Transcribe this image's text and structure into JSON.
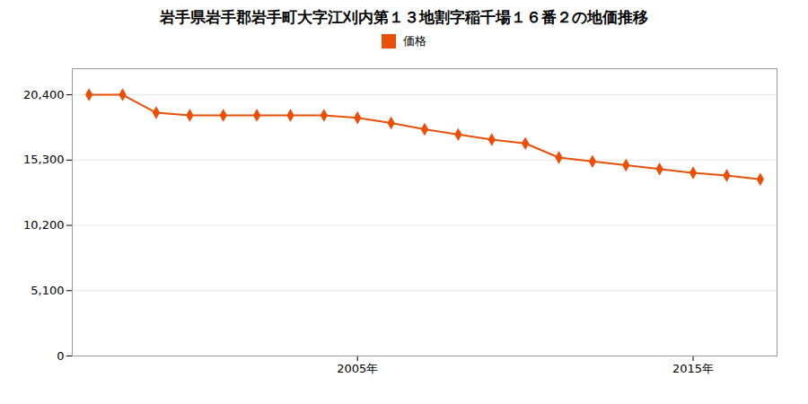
{
  "chart_data": {
    "type": "line",
    "title": "岩手県岩手郡岩手町大字江刈内第１３地割字稲千場１６番２の地価推移",
    "x": [
      1997,
      1998,
      1999,
      2000,
      2001,
      2002,
      2003,
      2004,
      2005,
      2006,
      2007,
      2008,
      2009,
      2010,
      2011,
      2012,
      2013,
      2014,
      2015,
      2016,
      2017
    ],
    "series": [
      {
        "name": "価格",
        "color": "#e8500a",
        "marker": "diamond",
        "values": [
          20400,
          20400,
          19000,
          18800,
          18800,
          18800,
          18800,
          18800,
          18600,
          18200,
          17700,
          17300,
          16900,
          16600,
          15500,
          15200,
          14900,
          14600,
          14300,
          14100,
          13800
        ]
      }
    ],
    "xlim": [
      1996.5,
      2017.5
    ],
    "xticks": [
      {
        "value": 2005,
        "label": "2005年"
      },
      {
        "value": 2015,
        "label": "2015年"
      }
    ],
    "ylim": [
      0,
      22440
    ],
    "yticks": [
      0,
      {
        "value": 5100,
        "label": "5,100"
      },
      {
        "value": 10200,
        "label": "10,200"
      },
      {
        "value": 15300,
        "label": "15,300"
      },
      {
        "value": 20400,
        "label": "20,400"
      }
    ],
    "grid": "y",
    "legend": "top"
  }
}
